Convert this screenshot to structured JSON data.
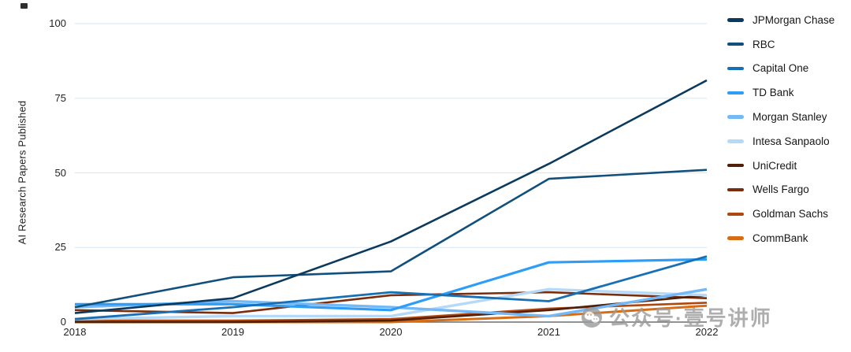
{
  "page": {
    "watermark": {
      "text": "公众号·壹号讲师",
      "icon": "wechat-logo"
    }
  },
  "chart_data": {
    "type": "line",
    "title": "",
    "xlabel": "",
    "ylabel": "AI Research Papers Published",
    "categories": [
      "2018",
      "2019",
      "2020",
      "2021",
      "2022"
    ],
    "ylim": [
      0,
      100
    ],
    "yticks": [
      0,
      25,
      50,
      75,
      100
    ],
    "grid": "horizontal",
    "legend_position": "right",
    "grid_color": "#d7e5f4",
    "axis_color": "#6e6e6e",
    "tick_label_color": "#1f1f1f",
    "series": [
      {
        "name": "JPMorgan Chase",
        "color": "#0b3a5f",
        "width": 2.6,
        "values": [
          3,
          8,
          27,
          53,
          81
        ]
      },
      {
        "name": "RBC",
        "color": "#11507d",
        "width": 2.6,
        "values": [
          5,
          15,
          17,
          48,
          51
        ]
      },
      {
        "name": "Capital One",
        "color": "#176fb5",
        "width": 2.8,
        "values": [
          1,
          5,
          10,
          7,
          22
        ]
      },
      {
        "name": "TD Bank",
        "color": "#2e9df7",
        "width": 3.2,
        "values": [
          6,
          6,
          4,
          20,
          21
        ]
      },
      {
        "name": "Morgan Stanley",
        "color": "#74b9f7",
        "width": 3.4,
        "values": [
          5,
          7,
          5,
          2,
          11
        ]
      },
      {
        "name": "Intesa Sanpaolo",
        "color": "#b5d9f8",
        "width": 3.4,
        "values": [
          1,
          2,
          2,
          11,
          9
        ]
      },
      {
        "name": "UniCredit",
        "color": "#4f1f08",
        "width": 2.6,
        "values": [
          0,
          0,
          0.5,
          4,
          9
        ]
      },
      {
        "name": "Wells Fargo",
        "color": "#7a2d0c",
        "width": 2.6,
        "values": [
          4,
          3,
          9,
          10,
          8
        ]
      },
      {
        "name": "Goldman Sachs",
        "color": "#b1470c",
        "width": 2.6,
        "values": [
          0.5,
          0.5,
          1,
          4.5,
          6.5
        ]
      },
      {
        "name": "CommBank",
        "color": "#d96c12",
        "width": 3.0,
        "values": [
          0,
          0,
          0,
          2,
          5.5
        ]
      }
    ]
  }
}
